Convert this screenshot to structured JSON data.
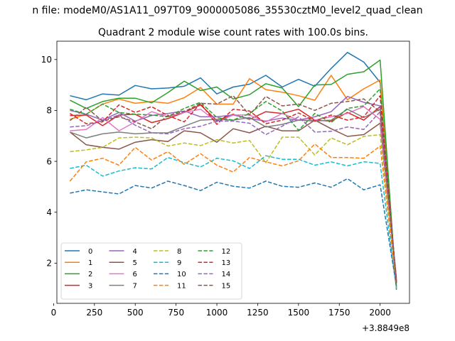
{
  "chart_data": {
    "type": "line",
    "suptitle": "n file: modeM0/AS1A11_097T09_9000005086_35530cztM0_level2_quad_clean",
    "title": "Quadrant 2 module wise count rates with 100.0s bins.",
    "xlabel": "",
    "ylabel": "",
    "x_offset_label": "+3.8849e8",
    "xlim": [
      20,
      2180
    ],
    "ylim": [
      0.42,
      10.72
    ],
    "x_ticks": [
      0,
      250,
      500,
      750,
      1000,
      1250,
      1500,
      1750,
      2000
    ],
    "y_ticks": [
      2,
      4,
      6,
      8,
      10
    ],
    "x": [
      100,
      200,
      300,
      400,
      500,
      600,
      700,
      800,
      900,
      1000,
      1100,
      1200,
      1300,
      1400,
      1500,
      1600,
      1700,
      1800,
      1900,
      2000,
      2100
    ],
    "legend": {
      "position": "lower-left",
      "columns": 4
    },
    "series": [
      {
        "name": "0",
        "color": "#1f77b4",
        "dash": "solid",
        "values": [
          8.58,
          8.42,
          8.65,
          8.6,
          8.98,
          8.85,
          8.88,
          8.95,
          9.28,
          8.65,
          8.92,
          9.03,
          9.38,
          8.92,
          9.22,
          8.95,
          9.65,
          10.28,
          9.9,
          9.1,
          1.0
        ]
      },
      {
        "name": "1",
        "color": "#ff7f0e",
        "dash": "solid",
        "values": [
          7.65,
          7.85,
          8.25,
          8.45,
          8.28,
          8.35,
          8.28,
          8.5,
          8.9,
          8.25,
          8.25,
          9.25,
          8.82,
          8.72,
          8.58,
          8.4,
          9.38,
          8.42,
          8.85,
          9.2,
          1.1
        ]
      },
      {
        "name": "2",
        "color": "#2ca02c",
        "dash": "solid",
        "values": [
          8.4,
          8.08,
          8.35,
          8.48,
          8.48,
          8.3,
          8.7,
          9.15,
          8.78,
          8.92,
          8.45,
          8.62,
          9.05,
          8.88,
          8.15,
          9.0,
          9.02,
          9.42,
          9.52,
          9.98,
          0.95
        ]
      },
      {
        "name": "3",
        "color": "#d62728",
        "dash": "solid",
        "values": [
          7.8,
          7.82,
          7.4,
          7.82,
          7.85,
          7.52,
          7.68,
          7.92,
          8.22,
          7.6,
          7.85,
          7.65,
          7.95,
          7.88,
          8.05,
          7.62,
          7.58,
          7.92,
          7.62,
          8.15,
          1.2
        ]
      },
      {
        "name": "4",
        "color": "#9467bd",
        "dash": "solid",
        "values": [
          8.0,
          7.85,
          7.62,
          7.92,
          7.58,
          7.8,
          7.88,
          7.98,
          7.75,
          7.75,
          7.82,
          7.68,
          7.58,
          7.7,
          7.62,
          7.75,
          7.95,
          8.55,
          8.32,
          8.18,
          1.25
        ]
      },
      {
        "name": "5",
        "color": "#8c564b",
        "dash": "solid",
        "values": [
          7.15,
          6.65,
          6.55,
          6.48,
          6.75,
          6.85,
          6.78,
          7.2,
          7.12,
          6.75,
          7.28,
          7.12,
          7.38,
          7.2,
          7.2,
          7.62,
          7.28,
          6.98,
          7.05,
          7.5,
          1.3
        ]
      },
      {
        "name": "6",
        "color": "#e377c2",
        "dash": "solid",
        "values": [
          7.2,
          7.25,
          7.72,
          7.2,
          7.55,
          7.95,
          7.75,
          7.92,
          8.05,
          7.55,
          7.82,
          7.82,
          7.55,
          7.88,
          7.62,
          7.62,
          7.75,
          7.88,
          8.15,
          7.65,
          1.35
        ]
      },
      {
        "name": "7",
        "color": "#7f7f7f",
        "dash": "solid",
        "values": [
          7.15,
          6.92,
          7.08,
          7.15,
          7.08,
          7.12,
          7.12,
          7.38,
          7.62,
          7.65,
          7.62,
          7.72,
          7.35,
          7.45,
          7.62,
          7.58,
          7.62,
          8.05,
          7.72,
          8.05,
          1.4
        ]
      },
      {
        "name": "8",
        "color": "#bcbd22",
        "dash": "dashed",
        "values": [
          6.38,
          6.45,
          6.55,
          6.92,
          6.95,
          6.92,
          6.6,
          6.72,
          6.62,
          6.85,
          6.72,
          6.82,
          5.95,
          6.95,
          6.95,
          6.25,
          6.92,
          6.65,
          6.98,
          7.05,
          1.05
        ]
      },
      {
        "name": "9",
        "color": "#17becf",
        "dash": "dashed",
        "values": [
          5.72,
          5.85,
          5.42,
          5.62,
          5.75,
          5.7,
          6.15,
          5.95,
          5.78,
          6.12,
          6.02,
          5.72,
          6.22,
          6.08,
          6.08,
          5.85,
          5.98,
          5.82,
          5.98,
          5.92,
          1.0
        ]
      },
      {
        "name": "10",
        "color": "#1f77b4",
        "dash": "dashed",
        "values": [
          4.75,
          4.88,
          4.8,
          4.72,
          5.05,
          4.95,
          5.22,
          5.05,
          4.85,
          5.18,
          5.02,
          4.95,
          5.22,
          5.02,
          4.98,
          5.15,
          4.98,
          5.32,
          4.88,
          5.08,
          1.1
        ]
      },
      {
        "name": "11",
        "color": "#ff7f0e",
        "dash": "dashed",
        "values": [
          5.22,
          5.98,
          6.12,
          5.85,
          6.55,
          6.05,
          6.38,
          5.88,
          6.3,
          5.85,
          5.58,
          6.15,
          5.98,
          5.82,
          6.02,
          6.68,
          6.15,
          6.15,
          6.12,
          6.6,
          1.15
        ]
      },
      {
        "name": "12",
        "color": "#2ca02c",
        "dash": "dashed",
        "values": [
          8.05,
          7.85,
          8.25,
          7.92,
          7.85,
          7.82,
          7.75,
          8.08,
          8.32,
          7.72,
          7.62,
          7.88,
          8.35,
          7.98,
          7.22,
          7.88,
          7.52,
          8.08,
          8.18,
          8.85,
          1.2
        ]
      },
      {
        "name": "13",
        "color": "#d62728",
        "dash": "dashed",
        "values": [
          7.88,
          7.48,
          7.55,
          8.22,
          7.92,
          8.15,
          7.8,
          7.55,
          8.28,
          7.45,
          8.05,
          7.98,
          7.48,
          7.62,
          7.9,
          7.58,
          7.82,
          7.62,
          7.75,
          8.58,
          1.25
        ]
      },
      {
        "name": "14",
        "color": "#9467bd",
        "dash": "dashed",
        "values": [
          7.35,
          7.4,
          7.6,
          7.82,
          7.42,
          7.12,
          7.08,
          7.28,
          7.38,
          7.58,
          7.58,
          7.5,
          7.05,
          7.38,
          7.75,
          7.15,
          7.18,
          7.35,
          7.25,
          7.95,
          1.3
        ]
      },
      {
        "name": "15",
        "color": "#8c564b",
        "dash": "dashed",
        "values": [
          7.6,
          8.12,
          7.58,
          7.75,
          7.55,
          7.28,
          7.8,
          7.95,
          8.28,
          8.25,
          8.58,
          7.82,
          8.55,
          8.18,
          8.25,
          8.0,
          8.28,
          8.35,
          8.45,
          7.95,
          1.35
        ]
      }
    ]
  }
}
